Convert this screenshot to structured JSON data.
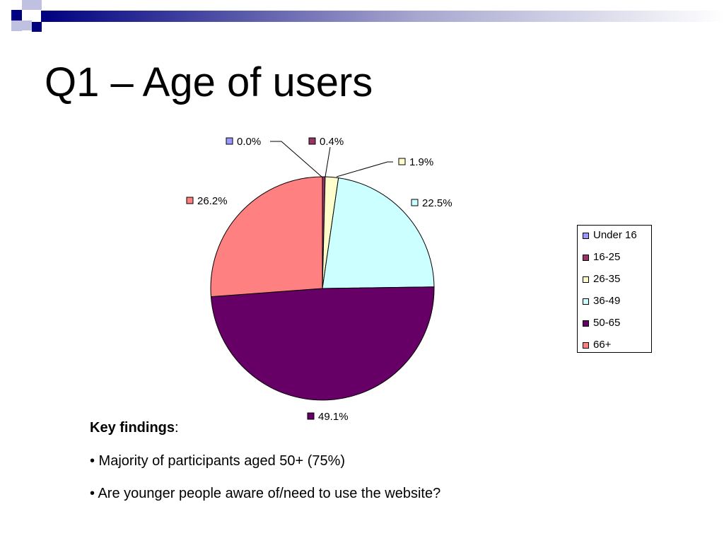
{
  "slide": {
    "title": "Q1 – Age of users"
  },
  "chart_data": {
    "type": "pie",
    "title": "",
    "categories": [
      "Under 16",
      "16-25",
      "26-35",
      "36-49",
      "50-65",
      "66+"
    ],
    "values": [
      0.0,
      0.4,
      1.9,
      22.5,
      49.1,
      26.2
    ],
    "value_labels": [
      "0.0%",
      "0.4%",
      "1.9%",
      "22.5%",
      "49.1%",
      "26.2%"
    ],
    "unit": "%",
    "colors": [
      "#9999ff",
      "#993366",
      "#ffffcc",
      "#ccffff",
      "#660066",
      "#ff8080"
    ],
    "legend": "right",
    "start": "top, clockwise"
  },
  "legend": {
    "items": [
      {
        "label": "Under 16",
        "color": "#9999ff"
      },
      {
        "label": "16-25",
        "color": "#993366"
      },
      {
        "label": "26-35",
        "color": "#ffffcc"
      },
      {
        "label": "36-49",
        "color": "#ccffff"
      },
      {
        "label": "50-65",
        "color": "#660066"
      },
      {
        "label": "66+",
        "color": "#ff8080"
      }
    ]
  },
  "findings": {
    "heading": "Key findings",
    "heading_suffix": ":",
    "items": [
      "• Majority of participants aged 50+ (75%)",
      "• Are younger people aware of/need to use the website?"
    ]
  },
  "theme": {
    "accent": "#000080",
    "accent_light": "#9999cc"
  }
}
